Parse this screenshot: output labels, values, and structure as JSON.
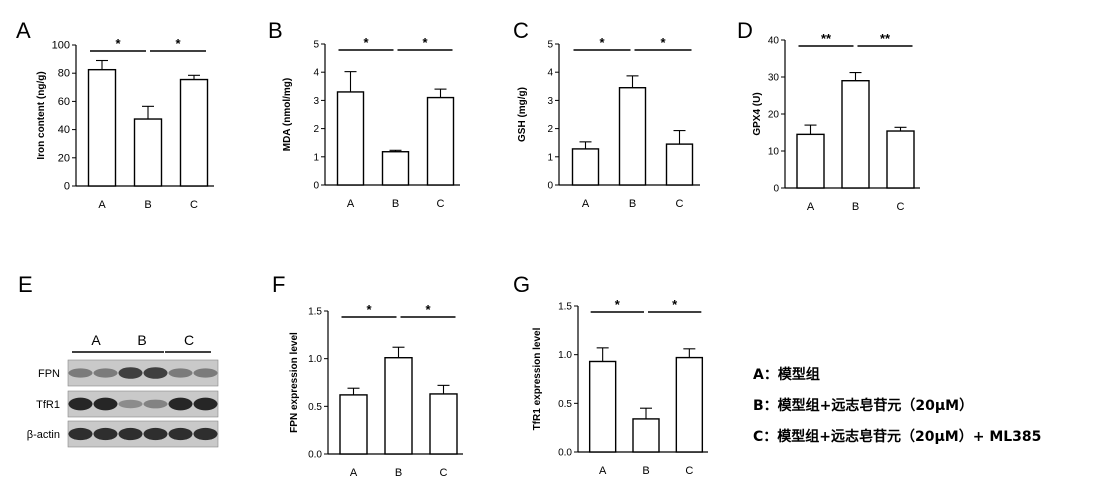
{
  "panels": [
    {
      "letter": "A",
      "chart_data": {
        "type": "bar",
        "categories": [
          "A",
          "B",
          "C"
        ],
        "values": [
          82.5,
          47.5,
          75.5
        ],
        "errors": [
          6.5,
          9,
          3
        ],
        "ylabel": "Iron content (ng/g)",
        "ylim": [
          0,
          100
        ],
        "yticks": [
          "0",
          "20",
          "40",
          "60",
          "80",
          "100"
        ],
        "significance": [
          {
            "from": 0,
            "to": 1,
            "label": "*"
          },
          {
            "from": 1,
            "to": 2,
            "label": "*"
          }
        ]
      }
    },
    {
      "letter": "B",
      "chart_data": {
        "type": "bar",
        "categories": [
          "A",
          "B",
          "C"
        ],
        "values": [
          3.3,
          1.18,
          3.1
        ],
        "errors": [
          0.72,
          0.05,
          0.3
        ],
        "ylabel": "MDA (nmol/mg)",
        "ylim": [
          0,
          5
        ],
        "yticks": [
          "0",
          "1",
          "2",
          "3",
          "4",
          "5"
        ],
        "significance": [
          {
            "from": 0,
            "to": 1,
            "label": "*"
          },
          {
            "from": 1,
            "to": 2,
            "label": "*"
          }
        ]
      }
    },
    {
      "letter": "C",
      "chart_data": {
        "type": "bar",
        "categories": [
          "A",
          "B",
          "C"
        ],
        "values": [
          1.28,
          3.45,
          1.45
        ],
        "errors": [
          0.25,
          0.42,
          0.48
        ],
        "ylabel": "GSH (mg/g)",
        "ylim": [
          0,
          5
        ],
        "yticks": [
          "0",
          "1",
          "2",
          "3",
          "4",
          "5"
        ],
        "significance": [
          {
            "from": 0,
            "to": 1,
            "label": "*"
          },
          {
            "from": 1,
            "to": 2,
            "label": "*"
          }
        ]
      }
    },
    {
      "letter": "D",
      "chart_data": {
        "type": "bar",
        "categories": [
          "A",
          "B",
          "C"
        ],
        "values": [
          14.5,
          29,
          15.4
        ],
        "errors": [
          2.5,
          2.2,
          1
        ],
        "ylabel": "GPX4 (U)",
        "ylim": [
          0,
          40
        ],
        "yticks": [
          "0",
          "10",
          "20",
          "30",
          "40"
        ],
        "significance": [
          {
            "from": 0,
            "to": 1,
            "label": "**"
          },
          {
            "from": 1,
            "to": 2,
            "label": "**"
          }
        ]
      }
    },
    {
      "letter": "F",
      "chart_data": {
        "type": "bar",
        "categories": [
          "A",
          "B",
          "C"
        ],
        "values": [
          0.62,
          1.01,
          0.63
        ],
        "errors": [
          0.07,
          0.11,
          0.09
        ],
        "ylabel": "FPN expression level",
        "ylim": [
          0,
          1.5
        ],
        "yticks": [
          "0.0",
          "0.5",
          "1.0",
          "1.5"
        ],
        "significance": [
          {
            "from": 0,
            "to": 1,
            "label": "*"
          },
          {
            "from": 1,
            "to": 2,
            "label": "*"
          }
        ]
      }
    },
    {
      "letter": "G",
      "chart_data": {
        "type": "bar",
        "categories": [
          "A",
          "B",
          "C"
        ],
        "values": [
          0.93,
          0.34,
          0.97
        ],
        "errors": [
          0.14,
          0.11,
          0.09
        ],
        "ylabel": "TfR1 expression level",
        "ylim": [
          0,
          1.5
        ],
        "yticks": [
          "0.0",
          "0.5",
          "1.0",
          "1.5"
        ],
        "significance": [
          {
            "from": 0,
            "to": 1,
            "label": "*"
          },
          {
            "from": 1,
            "to": 2,
            "label": "*"
          }
        ]
      }
    }
  ],
  "blot": {
    "letter": "E",
    "groups": [
      "A",
      "B",
      "C"
    ],
    "rows": [
      {
        "label": "FPN",
        "intensity": [
          0.45,
          0.45,
          0.8,
          0.8,
          0.45,
          0.45
        ]
      },
      {
        "label": "TfR1",
        "intensity": [
          0.95,
          0.95,
          0.35,
          0.4,
          0.95,
          0.95
        ]
      },
      {
        "label": "β-actin",
        "intensity": [
          0.9,
          0.9,
          0.9,
          0.9,
          0.9,
          0.9
        ]
      }
    ]
  },
  "legend": [
    "A：模型组",
    "B：模型组+远志皂苷元（20μM）",
    "C：模型组+远志皂苷元（20μM）+ ML385"
  ]
}
